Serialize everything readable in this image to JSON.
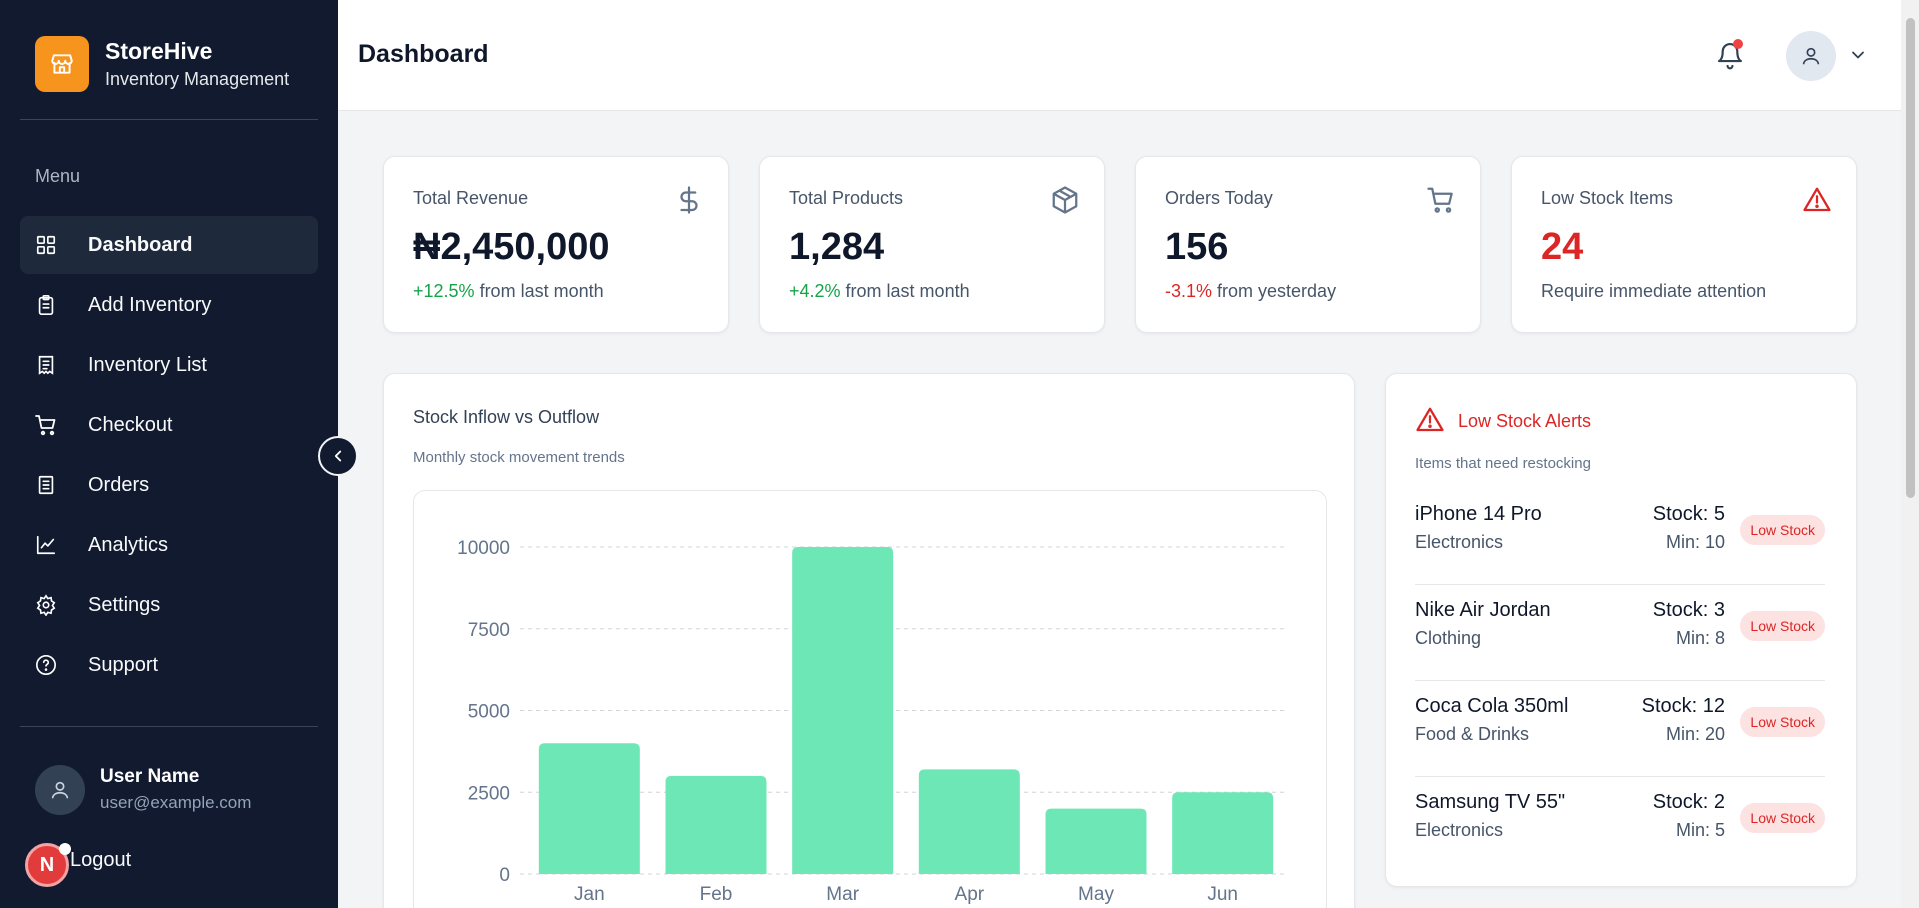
{
  "brand": {
    "name": "StoreHive",
    "subtitle": "Inventory Management"
  },
  "sidebar": {
    "menu_heading": "Menu",
    "items": [
      {
        "label": "Dashboard",
        "icon": "grid-icon",
        "active": true
      },
      {
        "label": "Add Inventory",
        "icon": "clipboard-icon"
      },
      {
        "label": "Inventory List",
        "icon": "list-document-icon"
      },
      {
        "label": "Checkout",
        "icon": "cart-icon"
      },
      {
        "label": "Orders",
        "icon": "receipt-icon"
      },
      {
        "label": "Analytics",
        "icon": "line-chart-icon"
      },
      {
        "label": "Settings",
        "icon": "gear-icon"
      },
      {
        "label": "Support",
        "icon": "help-circle-icon"
      }
    ],
    "user": {
      "name": "User Name",
      "email": "user@example.com"
    },
    "logout_label": "Logout",
    "badge_letter": "N"
  },
  "header": {
    "title": "Dashboard"
  },
  "stats": [
    {
      "label": "Total Revenue",
      "value": "₦2,450,000",
      "change": "+12.5%",
      "change_type": "positive",
      "note": " from last month",
      "icon": "dollar-icon"
    },
    {
      "label": "Total Products",
      "value": "1,284",
      "change": "+4.2%",
      "change_type": "positive",
      "note": " from last month",
      "icon": "box-icon"
    },
    {
      "label": "Orders Today",
      "value": "156",
      "change": "-3.1%",
      "change_type": "negative",
      "note": " from yesterday",
      "icon": "cart-icon"
    },
    {
      "label": "Low Stock Items",
      "value": "24",
      "change": "",
      "change_type": "alert",
      "note": "Require immediate attention",
      "icon": "warning-icon"
    }
  ],
  "chart_card": {
    "title": "Stock Inflow vs Outflow",
    "subtitle": "Monthly stock movement trends"
  },
  "chart_data": {
    "type": "bar",
    "categories": [
      "Jan",
      "Feb",
      "Mar",
      "Apr",
      "May",
      "Jun"
    ],
    "values": [
      4000,
      3000,
      10000,
      3200,
      2000,
      2500
    ],
    "ylim": [
      0,
      10000
    ],
    "yticks": [
      "0",
      "2500",
      "5000",
      "7500",
      "10000"
    ],
    "grid": true,
    "color": "#6ee7b7"
  },
  "alerts": {
    "title": "Low Stock Alerts",
    "subtitle": "Items that need restocking",
    "items": [
      {
        "name": "iPhone 14 Pro",
        "category": "Electronics",
        "stock": "Stock: 5",
        "min": "Min: 10",
        "badge": "Low Stock"
      },
      {
        "name": "Nike Air Jordan",
        "category": "Clothing",
        "stock": "Stock: 3",
        "min": "Min: 8",
        "badge": "Low Stock"
      },
      {
        "name": "Coca Cola 350ml",
        "category": "Food & Drinks",
        "stock": "Stock: 12",
        "min": "Min: 20",
        "badge": "Low Stock"
      },
      {
        "name": "Samsung TV 55\"",
        "category": "Electronics",
        "stock": "Stock: 2",
        "min": "Min: 5",
        "badge": "Low Stock"
      }
    ]
  }
}
